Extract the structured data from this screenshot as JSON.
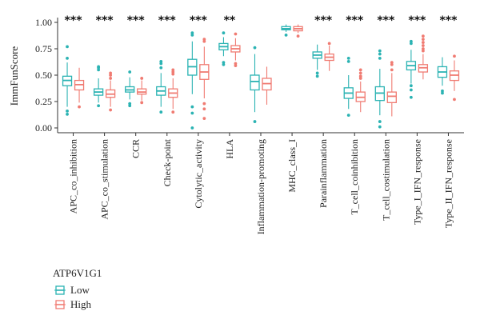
{
  "chart_data": {
    "type": "boxplot",
    "ylabel": "ImmFunScore",
    "ylim": [
      0,
      1
    ],
    "yticks": [
      "0.00",
      "0.25",
      "0.50",
      "0.75",
      "1.00"
    ],
    "categories": [
      "APC_co_inhibition",
      "APC_co_stimulation",
      "CCR",
      "Check-point",
      "Cytolytic_activity",
      "HLA",
      "Inflammation-promoting",
      "MHC_class_I",
      "Parainflammation",
      "T_cell_coinhibition",
      "T_cell_costimulation",
      "Type_I_IFN_response",
      "Type_II_IFN_response"
    ],
    "significance": [
      "***",
      "***",
      "***",
      "***",
      "***",
      "**",
      "",
      "",
      "***",
      "***",
      "***",
      "***",
      "***"
    ],
    "legend": {
      "title": "ATP6V1G1",
      "position": "bottom-left"
    },
    "series": [
      {
        "name": "Low",
        "color": "#2bb3b3",
        "boxes": [
          {
            "min": 0.2,
            "q1": 0.4,
            "median": 0.45,
            "q3": 0.49,
            "max": 0.62,
            "outliers": [
              0.77,
              0.66,
              0.16,
              0.13
            ]
          },
          {
            "min": 0.24,
            "q1": 0.31,
            "median": 0.34,
            "q3": 0.37,
            "max": 0.47,
            "outliers": [
              0.58,
              0.57,
              0.55,
              0.21
            ]
          },
          {
            "min": 0.27,
            "q1": 0.34,
            "median": 0.36,
            "q3": 0.39,
            "max": 0.48,
            "outliers": [
              0.53,
              0.23,
              0.21
            ]
          },
          {
            "min": 0.2,
            "q1": 0.31,
            "median": 0.35,
            "q3": 0.39,
            "max": 0.52,
            "outliers": [
              0.63,
              0.61,
              0.57,
              0.15
            ]
          },
          {
            "min": 0.32,
            "q1": 0.5,
            "median": 0.58,
            "q3": 0.65,
            "max": 0.82,
            "outliers": [
              0.9,
              0.88,
              0.2,
              0.14,
              0.0
            ]
          },
          {
            "min": 0.68,
            "q1": 0.74,
            "median": 0.77,
            "q3": 0.8,
            "max": 0.86,
            "outliers": [
              0.9,
              0.62,
              0.6
            ]
          },
          {
            "min": 0.15,
            "q1": 0.36,
            "median": 0.44,
            "q3": 0.5,
            "max": 0.7,
            "outliers": [
              0.76,
              0.06
            ]
          },
          {
            "min": 0.91,
            "q1": 0.93,
            "median": 0.94,
            "q3": 0.96,
            "max": 0.98,
            "outliers": [
              0.88
            ]
          },
          {
            "min": 0.55,
            "q1": 0.66,
            "median": 0.69,
            "q3": 0.72,
            "max": 0.79,
            "outliers": [
              0.52,
              0.49
            ]
          },
          {
            "min": 0.18,
            "q1": 0.28,
            "median": 0.33,
            "q3": 0.38,
            "max": 0.5,
            "outliers": [
              0.66,
              0.63,
              0.12
            ]
          },
          {
            "min": 0.12,
            "q1": 0.26,
            "median": 0.33,
            "q3": 0.39,
            "max": 0.56,
            "outliers": [
              0.73,
              0.7,
              0.66,
              0.06,
              0.01
            ]
          },
          {
            "min": 0.42,
            "q1": 0.55,
            "median": 0.59,
            "q3": 0.63,
            "max": 0.74,
            "outliers": [
              0.82,
              0.8,
              0.4,
              0.36,
              0.29
            ]
          },
          {
            "min": 0.4,
            "q1": 0.48,
            "median": 0.53,
            "q3": 0.58,
            "max": 0.67,
            "outliers": [
              0.35,
              0.33
            ]
          }
        ]
      },
      {
        "name": "High",
        "color": "#f07b72",
        "boxes": [
          {
            "min": 0.24,
            "q1": 0.36,
            "median": 0.41,
            "q3": 0.45,
            "max": 0.57,
            "outliers": [
              0.2
            ]
          },
          {
            "min": 0.2,
            "q1": 0.29,
            "median": 0.32,
            "q3": 0.36,
            "max": 0.45,
            "outliers": [
              0.52,
              0.5,
              0.47,
              0.17
            ]
          },
          {
            "min": 0.26,
            "q1": 0.32,
            "median": 0.34,
            "q3": 0.37,
            "max": 0.45,
            "outliers": [
              0.47,
              0.24
            ]
          },
          {
            "min": 0.18,
            "q1": 0.29,
            "median": 0.33,
            "q3": 0.37,
            "max": 0.47,
            "outliers": [
              0.55,
              0.53,
              0.51,
              0.15
            ]
          },
          {
            "min": 0.28,
            "q1": 0.46,
            "median": 0.53,
            "q3": 0.6,
            "max": 0.77,
            "outliers": [
              0.84,
              0.82,
              0.23,
              0.18,
              0.09
            ]
          },
          {
            "min": 0.64,
            "q1": 0.72,
            "median": 0.75,
            "q3": 0.78,
            "max": 0.85,
            "outliers": [
              0.89,
              0.61,
              0.59
            ]
          },
          {
            "min": 0.22,
            "q1": 0.36,
            "median": 0.42,
            "q3": 0.47,
            "max": 0.58,
            "outliers": []
          },
          {
            "min": 0.9,
            "q1": 0.92,
            "median": 0.94,
            "q3": 0.96,
            "max": 0.98,
            "outliers": [
              0.87
            ]
          },
          {
            "min": 0.54,
            "q1": 0.64,
            "median": 0.67,
            "q3": 0.7,
            "max": 0.78,
            "outliers": [
              0.8
            ]
          },
          {
            "min": 0.15,
            "q1": 0.25,
            "median": 0.29,
            "q3": 0.34,
            "max": 0.44,
            "outliers": [
              0.55,
              0.52,
              0.49,
              0.47
            ]
          },
          {
            "min": 0.11,
            "q1": 0.24,
            "median": 0.3,
            "q3": 0.34,
            "max": 0.52,
            "outliers": [
              0.62,
              0.6,
              0.55
            ]
          },
          {
            "min": 0.46,
            "q1": 0.53,
            "median": 0.57,
            "q3": 0.6,
            "max": 0.7,
            "outliers": [
              0.87,
              0.84,
              0.81,
              0.78,
              0.75,
              0.73
            ]
          },
          {
            "min": 0.35,
            "q1": 0.45,
            "median": 0.5,
            "q3": 0.54,
            "max": 0.64,
            "outliers": [
              0.68,
              0.27
            ]
          }
        ]
      }
    ]
  }
}
